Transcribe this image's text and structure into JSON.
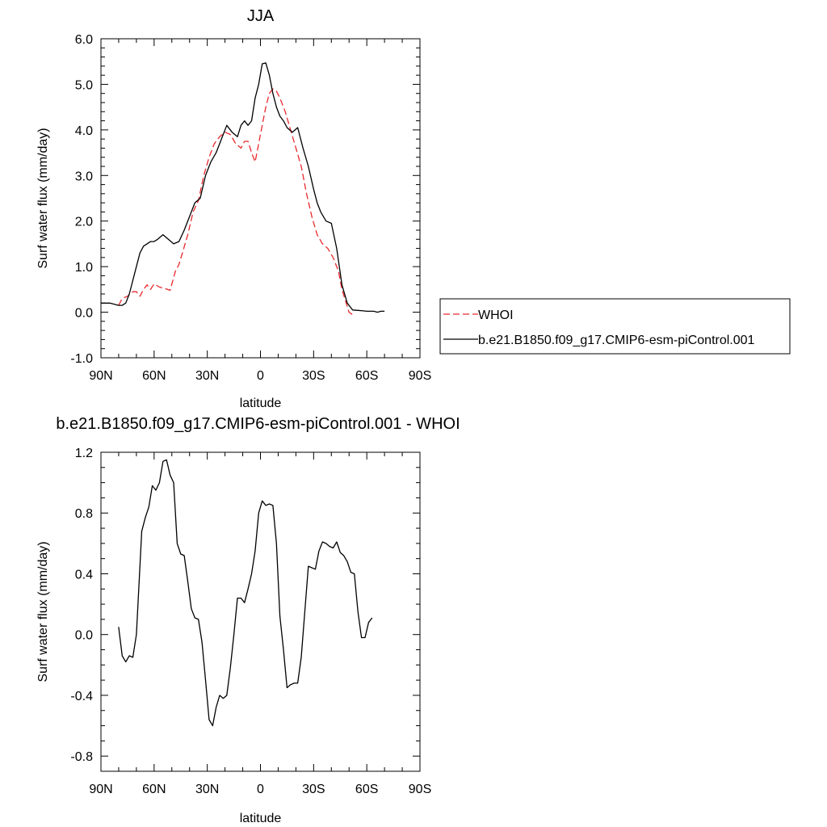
{
  "legend": {
    "placement": "right",
    "entries": [
      {
        "label": "WHOI",
        "color": "#e8292d",
        "style": "dashed"
      },
      {
        "label": "b.e21.B1850.f09_g17.CMIP6-esm-piControl.001",
        "color": "#000000",
        "style": "solid"
      }
    ]
  },
  "chart_data": [
    {
      "type": "line",
      "title": "JJA",
      "xlabel": "latitude",
      "ylabel": "Surf water flux (mm/day)",
      "xlim": [
        90,
        -90
      ],
      "ylim": [
        -1.0,
        6.0
      ],
      "xticks": [
        90,
        60,
        30,
        0,
        -30,
        -60,
        -90
      ],
      "xtick_labels": [
        "90N",
        "60N",
        "30N",
        "0",
        "30S",
        "60S",
        "90S"
      ],
      "yticks": [
        -1.0,
        0.0,
        1.0,
        2.0,
        3.0,
        4.0,
        5.0,
        6.0
      ],
      "ytick_labels": [
        "-1.0",
        "0.0",
        "1.0",
        "2.0",
        "3.0",
        "4.0",
        "5.0",
        "6.0"
      ],
      "grid": false,
      "legend": "right",
      "series": [
        {
          "name": "WHOI",
          "color": "#e8292d",
          "dash": "dashed",
          "x": [
            80,
            78,
            75,
            72,
            70,
            68,
            66,
            64,
            62,
            60,
            57,
            54,
            51,
            48,
            46,
            44,
            41,
            38,
            35,
            32,
            29,
            26,
            23,
            20,
            17,
            14,
            11,
            9,
            7,
            5,
            3,
            1,
            -1,
            -3,
            -5,
            -7,
            -9,
            -11,
            -14,
            -17,
            -20,
            -23,
            -26,
            -29,
            -32,
            -35,
            -38,
            -41,
            -44,
            -46,
            -48,
            -50,
            -53,
            -56,
            -59,
            -62,
            -64,
            -66,
            -68,
            -70,
            -72
          ],
          "y": [
            0.15,
            0.3,
            0.35,
            0.45,
            0.45,
            0.35,
            0.5,
            0.6,
            0.5,
            0.62,
            0.55,
            0.52,
            0.48,
            0.9,
            1.05,
            1.3,
            1.7,
            2.2,
            2.45,
            3.0,
            3.4,
            3.7,
            3.85,
            3.95,
            3.9,
            3.7,
            3.6,
            3.75,
            3.75,
            3.5,
            3.3,
            3.7,
            4.1,
            4.5,
            4.8,
            4.9,
            4.85,
            4.7,
            4.4,
            4.0,
            3.6,
            3.2,
            2.6,
            2.1,
            1.7,
            1.5,
            1.4,
            1.2,
            0.9,
            0.5,
            0.25,
            0.0,
            -0.08,
            null,
            null,
            null,
            null,
            null,
            null,
            null,
            null
          ]
        },
        {
          "name": "b.e21.B1850.f09_g17.CMIP6-esm-piControl.001",
          "color": "#000000",
          "dash": "solid",
          "x": [
            90,
            85,
            80,
            78,
            76,
            74,
            72,
            70,
            68,
            66,
            64,
            62,
            60,
            58,
            55,
            52,
            49,
            46,
            43,
            40,
            37,
            34,
            31,
            28,
            25,
            22,
            19,
            16,
            13,
            11,
            9,
            7,
            5,
            3,
            1,
            -1,
            -3,
            -5,
            -7,
            -9,
            -11,
            -13,
            -15,
            -18,
            -21,
            -24,
            -27,
            -30,
            -32,
            -34,
            -37,
            -40,
            -43,
            -46,
            -49,
            -52,
            -55,
            -58,
            -60,
            -62,
            -64,
            -66,
            -68,
            -70,
            -72,
            -75,
            -78,
            -81,
            -84,
            -87,
            -90
          ],
          "y": [
            0.2,
            0.2,
            0.15,
            0.15,
            0.2,
            0.4,
            0.7,
            1.0,
            1.3,
            1.45,
            1.5,
            1.55,
            1.55,
            1.6,
            1.7,
            1.6,
            1.5,
            1.55,
            1.8,
            2.1,
            2.4,
            2.5,
            3.0,
            3.3,
            3.5,
            3.8,
            4.1,
            3.95,
            3.85,
            4.1,
            4.2,
            4.1,
            4.2,
            4.7,
            5.0,
            5.45,
            5.47,
            5.2,
            4.8,
            4.5,
            4.3,
            4.2,
            4.05,
            3.95,
            4.05,
            3.6,
            3.2,
            2.7,
            2.4,
            2.2,
            2.0,
            1.95,
            1.4,
            0.6,
            0.2,
            0.05,
            0.04,
            0.03,
            0.02,
            0.02,
            0.02,
            0.0,
            0.02,
            0.02,
            null,
            null,
            null,
            null,
            null,
            null,
            null
          ]
        }
      ]
    },
    {
      "type": "line",
      "title": "b.e21.B1850.f09_g17.CMIP6-esm-piControl.001 - WHOI",
      "xlabel": "latitude",
      "ylabel": "Surf water flux (mm/day)",
      "xlim": [
        90,
        -90
      ],
      "ylim": [
        -0.9,
        1.2
      ],
      "xticks": [
        90,
        60,
        30,
        0,
        -30,
        -60,
        -90
      ],
      "xtick_labels": [
        "90N",
        "60N",
        "30N",
        "0",
        "30S",
        "60S",
        "90S"
      ],
      "yticks": [
        -0.8,
        -0.4,
        0.0,
        0.4,
        0.8,
        1.2
      ],
      "ytick_labels": [
        "-0.8",
        "-0.4",
        "0.0",
        "0.4",
        "0.8",
        "1.2"
      ],
      "grid": false,
      "series": [
        {
          "color": "#000000",
          "dash": "solid",
          "x": [
            80,
            78,
            76,
            74,
            72,
            70,
            67,
            65,
            63,
            61,
            59,
            57,
            55,
            53,
            51,
            49,
            47,
            45,
            43,
            41,
            39,
            37,
            35,
            33,
            31,
            29,
            27,
            25,
            23,
            21,
            19,
            17,
            15,
            13,
            11,
            9,
            7,
            5,
            3,
            1,
            -1,
            -3,
            -5,
            -7,
            -9,
            -11,
            -13,
            -15,
            -17,
            -19,
            -21,
            -23,
            -25,
            -27,
            -29,
            -31,
            -33,
            -35,
            -37,
            -39,
            -41,
            -43,
            -45,
            -47,
            -49,
            -51,
            -53,
            -55,
            -57,
            -59,
            -61,
            -63,
            -65,
            -67,
            -69,
            -71
          ],
          "y": [
            0.05,
            -0.14,
            -0.18,
            -0.14,
            -0.15,
            0.0,
            0.68,
            0.77,
            0.84,
            0.98,
            0.95,
            1.0,
            1.14,
            1.15,
            1.05,
            1.0,
            0.6,
            0.53,
            0.52,
            0.35,
            0.17,
            0.11,
            0.1,
            -0.05,
            -0.3,
            -0.56,
            -0.6,
            -0.48,
            -0.4,
            -0.42,
            -0.4,
            -0.22,
            0.0,
            0.24,
            0.24,
            0.21,
            0.3,
            0.4,
            0.55,
            0.8,
            0.88,
            0.85,
            0.86,
            0.85,
            0.6,
            0.12,
            -0.1,
            -0.35,
            -0.33,
            -0.32,
            -0.32,
            -0.15,
            0.15,
            0.45,
            0.44,
            0.43,
            0.55,
            0.61,
            0.6,
            0.58,
            0.57,
            0.61,
            0.54,
            0.52,
            0.48,
            0.41,
            0.4,
            0.15,
            -0.02,
            -0.02,
            0.08,
            0.11,
            null,
            null,
            null,
            null
          ]
        }
      ]
    }
  ]
}
